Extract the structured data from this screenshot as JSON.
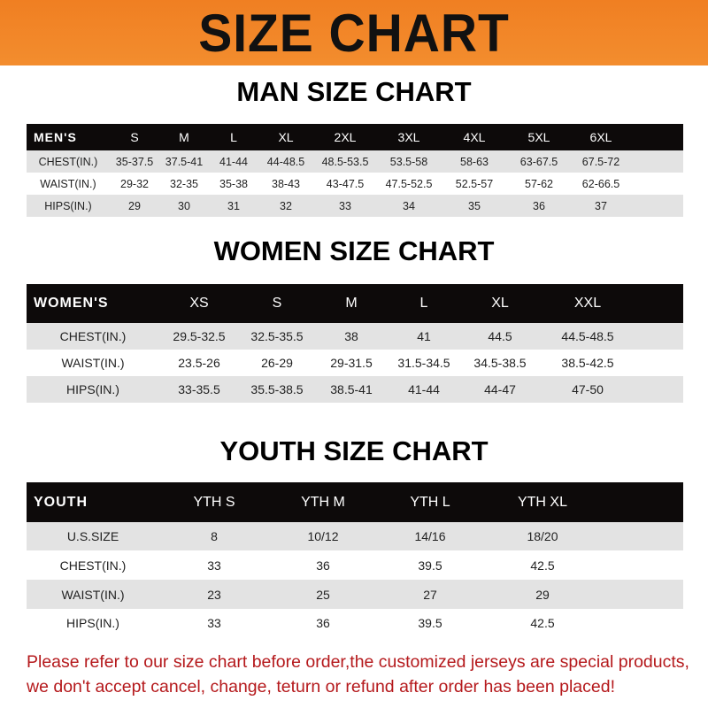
{
  "banner": "SIZE CHART",
  "men": {
    "title": "MAN SIZE CHART",
    "header": [
      "MEN'S",
      "S",
      "M",
      "L",
      "XL",
      "2XL",
      "3XL",
      "4XL",
      "5XL",
      "6XL"
    ],
    "rows": [
      [
        "CHEST(IN.)",
        "35-37.5",
        "37.5-41",
        "41-44",
        "44-48.5",
        "48.5-53.5",
        "53.5-58",
        "58-63",
        "63-67.5",
        "67.5-72"
      ],
      [
        "WAIST(IN.)",
        "29-32",
        "32-35",
        "35-38",
        "38-43",
        "43-47.5",
        "47.5-52.5",
        "52.5-57",
        "57-62",
        "62-66.5"
      ],
      [
        "HIPS(IN.)",
        "29",
        "30",
        "31",
        "32",
        "33",
        "34",
        "35",
        "36",
        "37"
      ]
    ]
  },
  "women": {
    "title": "WOMEN SIZE CHART",
    "header": [
      "WOMEN'S",
      "XS",
      "S",
      "M",
      "L",
      "XL",
      "XXL"
    ],
    "rows": [
      [
        "CHEST(IN.)",
        "29.5-32.5",
        "32.5-35.5",
        "38",
        "41",
        "44.5",
        "44.5-48.5"
      ],
      [
        "WAIST(IN.)",
        "23.5-26",
        "26-29",
        "29-31.5",
        "31.5-34.5",
        "34.5-38.5",
        "38.5-42.5"
      ],
      [
        "HIPS(IN.)",
        "33-35.5",
        "35.5-38.5",
        "38.5-41",
        "41-44",
        "44-47",
        "47-50"
      ]
    ]
  },
  "youth": {
    "title": "YOUTH SIZE CHART",
    "header": [
      "YOUTH",
      "YTH S",
      "YTH M",
      "YTH L",
      "YTH XL"
    ],
    "rows": [
      [
        "U.S.SIZE",
        "8",
        "10/12",
        "14/16",
        "18/20"
      ],
      [
        "CHEST(IN.)",
        "33",
        "36",
        "39.5",
        "42.5"
      ],
      [
        "WAIST(IN.)",
        "23",
        "25",
        "27",
        "29"
      ],
      [
        "HIPS(IN.)",
        "33",
        "36",
        "39.5",
        "42.5"
      ]
    ]
  },
  "note": {
    "line1": "Please refer to our size chart before order,the customized jerseys are special products,",
    "line2": "we don't accept cancel, change, teturn or refund after order has been placed!"
  },
  "colors": {
    "banner": "#f07f22",
    "header_row": "#0d0a0a",
    "stripe": "#e3e3e3",
    "note": "#b5191c"
  }
}
